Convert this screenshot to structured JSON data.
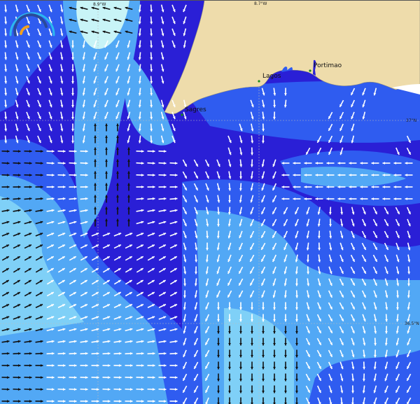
{
  "map": {
    "places": [
      {
        "name": "Sagres"
      },
      {
        "name": "Lagos"
      },
      {
        "name": "Portimao"
      }
    ],
    "graticule": {
      "lon_labels": [
        "8.9°W",
        "8.7°W"
      ],
      "lat_labels": [
        "37°N",
        "36.5°N"
      ]
    },
    "colors": {
      "land": "#eedcab",
      "sea_low": "#2a1fd6",
      "sea_mid": "#2f5cf0",
      "sea_high": "#52a8f5",
      "sea_peak": "#c8f4f7",
      "arrow_light": "#ffffff",
      "arrow_dark": "#111111"
    },
    "layer": "current-vectors"
  }
}
